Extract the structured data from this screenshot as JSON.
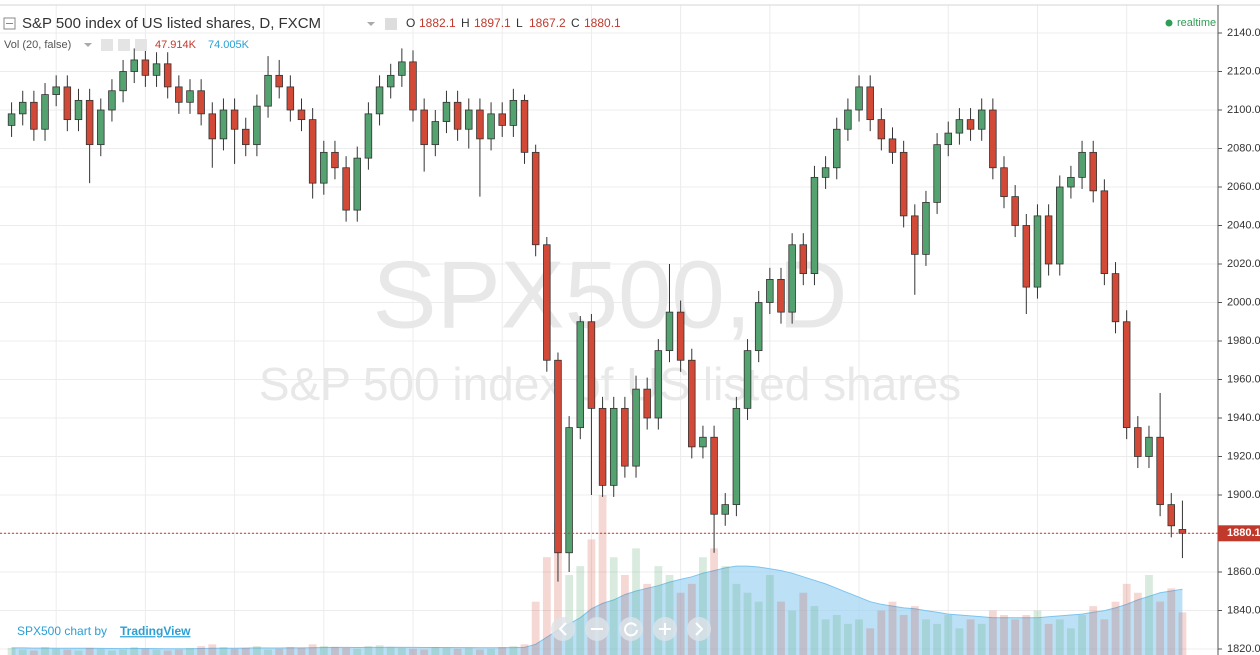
{
  "chart_data": {
    "type": "candlestick",
    "title": "S&P 500 index of US listed shares, D, FXCM",
    "ohlc_labels": [
      "O",
      "H",
      "L",
      "C"
    ],
    "realtime_label": "realtime",
    "watermark": "SPX500, D",
    "watermark_subtitle": "S&P 500 index of US listed shares",
    "footer": {
      "text": "SPX500 chart by",
      "link": "TradingView"
    },
    "up_color": "#53a26f",
    "down_color": "#d24a37",
    "open": [
      2092,
      2098,
      2104,
      2090,
      2108,
      2112,
      2095,
      2105,
      2082,
      2100,
      2110,
      2120,
      2126,
      2118,
      2124,
      2112,
      2104,
      2110,
      2098,
      2085,
      2100,
      2090,
      2082,
      2102,
      2118,
      2112,
      2100,
      2095,
      2062,
      2078,
      2070,
      2048,
      2075,
      2098,
      2112,
      2118,
      2125,
      2100,
      2082,
      2094,
      2104,
      2090,
      2100,
      2085,
      2098,
      2092,
      2105,
      2078,
      2030,
      1970,
      1870,
      1935,
      1990,
      1945,
      1905,
      1945,
      1915,
      1955,
      1940,
      1975,
      1995,
      1970,
      1925,
      1930,
      1890,
      1895,
      1945,
      1975,
      2000,
      2012,
      1995,
      2030,
      2015,
      2065,
      2070,
      2090,
      2100,
      2112,
      2095,
      2085,
      2078,
      2045,
      2025,
      2052,
      2082,
      2088,
      2095,
      2090,
      2100,
      2070,
      2055,
      2040,
      2008,
      2045,
      2020,
      2060,
      2065,
      2078,
      2058,
      2015,
      1990,
      1935,
      1920,
      1930,
      1895,
      1882.1
    ],
    "high": [
      2104,
      2110,
      2110,
      2114,
      2118,
      2118,
      2111,
      2111,
      2106,
      2116,
      2126,
      2132,
      2132,
      2130,
      2130,
      2118,
      2116,
      2116,
      2104,
      2106,
      2106,
      2096,
      2108,
      2128,
      2126,
      2118,
      2106,
      2101,
      2084,
      2084,
      2076,
      2081,
      2104,
      2118,
      2124,
      2132,
      2131,
      2106,
      2100,
      2110,
      2110,
      2106,
      2106,
      2104,
      2104,
      2111,
      2108,
      2082,
      2034,
      1974,
      1941,
      1993,
      1994,
      1951,
      1951,
      1951,
      1962,
      1961,
      1981,
      2020,
      2001,
      1976,
      1936,
      1936,
      1901,
      1951,
      1981,
      2006,
      2018,
      2018,
      2036,
      2036,
      2071,
      2076,
      2096,
      2106,
      2118,
      2118,
      2101,
      2091,
      2084,
      2051,
      2058,
      2088,
      2094,
      2101,
      2101,
      2106,
      2106,
      2076,
      2061,
      2046,
      2051,
      2051,
      2066,
      2071,
      2084,
      2084,
      2064,
      2021,
      1996,
      1941,
      1936,
      1953,
      1901,
      1897.1
    ],
    "low": [
      2086,
      2092,
      2084,
      2084,
      2102,
      2089,
      2089,
      2062,
      2076,
      2094,
      2104,
      2114,
      2112,
      2112,
      2106,
      2098,
      2098,
      2092,
      2070,
      2079,
      2072,
      2076,
      2076,
      2096,
      2106,
      2094,
      2089,
      2054,
      2056,
      2064,
      2042,
      2042,
      2069,
      2092,
      2106,
      2112,
      2094,
      2068,
      2076,
      2088,
      2084,
      2080,
      2055,
      2079,
      2086,
      2086,
      2072,
      2024,
      1964,
      1855,
      1860,
      1929,
      1900,
      1899,
      1899,
      1909,
      1909,
      1934,
      1934,
      1969,
      1964,
      1919,
      1919,
      1870,
      1884,
      1889,
      1939,
      1969,
      1994,
      1989,
      1989,
      2009,
      2009,
      2059,
      2064,
      2084,
      2094,
      2089,
      2079,
      2072,
      2039,
      2004,
      2019,
      2046,
      2076,
      2082,
      2084,
      2084,
      2064,
      2049,
      2034,
      1994,
      2002,
      2014,
      2014,
      2054,
      2059,
      2052,
      2009,
      1984,
      1929,
      1914,
      1914,
      1889,
      1878,
      1867.2
    ],
    "close": [
      2098,
      2104,
      2090,
      2108,
      2112,
      2095,
      2105,
      2082,
      2100,
      2110,
      2120,
      2126,
      2118,
      2124,
      2112,
      2104,
      2110,
      2098,
      2085,
      2100,
      2090,
      2082,
      2102,
      2118,
      2112,
      2100,
      2095,
      2062,
      2078,
      2070,
      2048,
      2075,
      2098,
      2112,
      2118,
      2125,
      2100,
      2082,
      2094,
      2104,
      2090,
      2100,
      2085,
      2098,
      2092,
      2105,
      2078,
      2030,
      1970,
      1870,
      1935,
      1990,
      1945,
      1905,
      1945,
      1915,
      1955,
      1940,
      1975,
      1995,
      1970,
      1925,
      1930,
      1890,
      1895,
      1945,
      1975,
      2000,
      2012,
      1995,
      2030,
      2015,
      2065,
      2070,
      2090,
      2100,
      2112,
      2095,
      2085,
      2078,
      2045,
      2025,
      2052,
      2082,
      2088,
      2095,
      2090,
      2100,
      2070,
      2055,
      2040,
      2008,
      2045,
      2020,
      2060,
      2065,
      2078,
      2058,
      2015,
      1990,
      1935,
      1920,
      1930,
      1895,
      1884,
      1880.1
    ],
    "volume": {
      "name": "Vol (20, false)",
      "last_label": "47.914K",
      "ma_last_label": "74.005K",
      "color": "#e0eef7",
      "ma_color": "#9fd3f2",
      "values": [
        8000,
        6000,
        5000,
        9000,
        7000,
        6000,
        5000,
        8000,
        7000,
        5000,
        6000,
        9000,
        7000,
        6000,
        5000,
        6000,
        8000,
        10000,
        12000,
        9000,
        7000,
        8000,
        10000,
        6000,
        7000,
        9000,
        8000,
        12000,
        10000,
        9000,
        8000,
        7000,
        10000,
        11000,
        9000,
        8000,
        7000,
        6000,
        9000,
        8000,
        7000,
        8000,
        6000,
        7000,
        9000,
        10000,
        12000,
        60000,
        110000,
        150000,
        90000,
        100000,
        130000,
        180000,
        110000,
        90000,
        120000,
        80000,
        100000,
        90000,
        70000,
        80000,
        110000,
        120000,
        100000,
        80000,
        70000,
        60000,
        90000,
        60000,
        50000,
        70000,
        55000,
        40000,
        45000,
        35000,
        40000,
        30000,
        50000,
        60000,
        45000,
        55000,
        40000,
        35000,
        45000,
        30000,
        40000,
        35000,
        50000,
        45000,
        40000,
        45000,
        50000,
        35000,
        40000,
        30000,
        45000,
        55000,
        40000,
        60000,
        80000,
        70000,
        90000,
        60000,
        75000,
        47914
      ],
      "ma": [
        8000,
        8000,
        7800,
        7800,
        7700,
        7600,
        7500,
        7500,
        7400,
        7300,
        7200,
        7300,
        7300,
        7200,
        7100,
        7000,
        7100,
        7300,
        7600,
        7700,
        7700,
        7800,
        8000,
        7900,
        7900,
        8000,
        8000,
        8200,
        8400,
        8500,
        8500,
        8400,
        8500,
        8600,
        8700,
        8600,
        8500,
        8400,
        8400,
        8400,
        8300,
        8300,
        8200,
        8100,
        8200,
        8300,
        8500,
        12000,
        20000,
        28000,
        35000,
        42000,
        52000,
        58000,
        62000,
        68000,
        72000,
        75000,
        78000,
        82000,
        85000,
        88000,
        92000,
        95000,
        98000,
        100000,
        100000,
        99000,
        97000,
        95000,
        92000,
        88000,
        84000,
        80000,
        75000,
        70000,
        65000,
        60000,
        57000,
        55000,
        53000,
        52000,
        50000,
        48000,
        46000,
        45000,
        44000,
        43000,
        42000,
        42000,
        42000,
        42000,
        42000,
        43000,
        44000,
        45000,
        46000,
        48000,
        50000,
        53000,
        57000,
        62000,
        66000,
        70000,
        72000,
        74005
      ]
    },
    "ylim": [
      1820,
      2140
    ],
    "yticks": [
      {
        "value": 1820,
        "label": "1820.0"
      },
      {
        "value": 1840,
        "label": "1840.0"
      },
      {
        "value": 1860,
        "label": "1860.0"
      },
      {
        "value": 1880,
        "label": "1880.0"
      },
      {
        "value": 1900,
        "label": "1900.0"
      },
      {
        "value": 1920,
        "label": "1920.0"
      },
      {
        "value": 1940,
        "label": "1940.0"
      },
      {
        "value": 1960,
        "label": "1960.0"
      },
      {
        "value": 1980,
        "label": "1980.0"
      },
      {
        "value": 2000,
        "label": "2000.0"
      },
      {
        "value": 2020,
        "label": "2020.0"
      },
      {
        "value": 2040,
        "label": "2040.0"
      },
      {
        "value": 2060,
        "label": "2060.0"
      },
      {
        "value": 2080,
        "label": "2080.0"
      },
      {
        "value": 2100,
        "label": "2100.0"
      },
      {
        "value": 2120,
        "label": "2120.0"
      },
      {
        "value": 2140,
        "label": "2140.0"
      }
    ],
    "grid": true
  }
}
